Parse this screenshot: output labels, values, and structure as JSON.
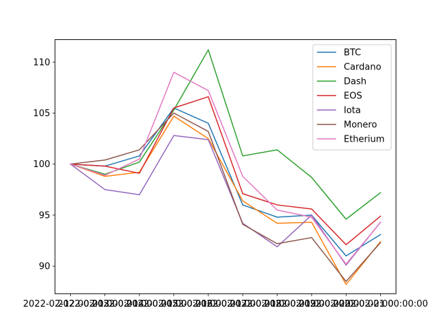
{
  "chart_data": {
    "type": "line",
    "title": "",
    "xlabel": "",
    "ylabel": "",
    "x": [
      "2022-02-12",
      "2022-02-13",
      "2022-02-14",
      "2022-02-15",
      "2022-02-16",
      "2022-02-17",
      "2022-02-18",
      "2022-02-19",
      "2022-02-20",
      "2022-02-21"
    ],
    "x_tick_labels": [
      "2022-02-12 00:00:00",
      "2022-02-13 00:00:00",
      "2022-02-14 00:00:00",
      "2022-02-15 00:00:00",
      "2022-02-16 00:00:00",
      "2022-02-17 00:00:00",
      "2022-02-18 00:00:00",
      "2022-02-19 00:00:00",
      "2022-02-20 00:00:00",
      "2022-02-21 00:00:00"
    ],
    "ylim": [
      87.3,
      112.2
    ],
    "y_ticks": [
      90,
      95,
      100,
      105,
      110
    ],
    "legend": "upper right",
    "grid": false,
    "series": [
      {
        "name": "BTC",
        "color": "#1f77b4",
        "values": [
          100.0,
          99.8,
          100.8,
          105.5,
          104.0,
          96.0,
          94.8,
          95.0,
          91.0,
          93.1
        ]
      },
      {
        "name": "Cardano",
        "color": "#ff7f0e",
        "values": [
          100.0,
          98.8,
          99.2,
          104.7,
          102.5,
          96.4,
          94.2,
          94.3,
          88.2,
          92.4
        ]
      },
      {
        "name": "Dash",
        "color": "#2ca02c",
        "values": [
          100.0,
          99.0,
          100.2,
          105.3,
          111.2,
          100.8,
          101.4,
          98.7,
          94.6,
          97.2
        ]
      },
      {
        "name": "EOS",
        "color": "#d62728",
        "values": [
          100.0,
          99.8,
          99.1,
          105.5,
          106.6,
          97.1,
          96.0,
          95.6,
          92.1,
          94.9
        ]
      },
      {
        "name": "Iota",
        "color": "#9467bd",
        "values": [
          100.0,
          97.5,
          97.0,
          102.8,
          102.4,
          94.2,
          91.9,
          95.0,
          90.1,
          94.3
        ]
      },
      {
        "name": "Monero",
        "color": "#8c564b",
        "values": [
          100.0,
          100.4,
          101.4,
          105.0,
          103.2,
          94.1,
          92.2,
          92.8,
          88.5,
          92.3
        ]
      },
      {
        "name": "Etherium",
        "color": "#e377c2",
        "values": [
          100.0,
          98.9,
          100.5,
          109.0,
          107.2,
          98.8,
          95.5,
          94.8,
          90.2,
          94.3
        ]
      }
    ]
  }
}
